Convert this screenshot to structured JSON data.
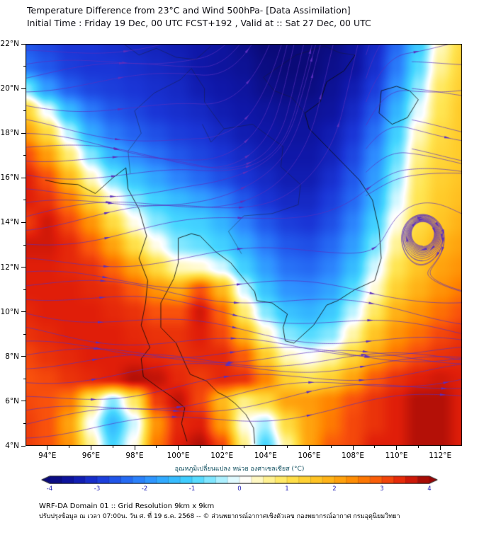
{
  "header": {
    "title_line1": "Temperature Difference from 23°C and Wind 500hPa- [Data Assimilation]",
    "title_line2": "Initial Time : Friday 19 Dec, 00 UTC FCST+192 , Valid at ::  Sat 27 Dec, 00 UTC"
  },
  "footer": {
    "line1": "WRF-DA Domain 01 :: Grid Resolution 9km x 9km",
    "line2": "ปรับปรุงข้อมูล ณ เวลา 07:00น. วัน ศ. ที่ 19 ธ.ค. 2568 -- © ส่วนพยากรณ์อากาศเชิงตัวเลข กองพยากรณ์อากาศ กรมอุตุนิยมวิทยา"
  },
  "chart_data": {
    "type": "heatmap",
    "title": "Temperature Difference from 23°C and Wind 500hPa- [Data Assimilation]",
    "lon_range": [
      93,
      113
    ],
    "lat_range": [
      4,
      22
    ],
    "x_ticks": [
      {
        "value": 94,
        "label": "94°E"
      },
      {
        "value": 96,
        "label": "96°E"
      },
      {
        "value": 98,
        "label": "98°E"
      },
      {
        "value": 100,
        "label": "100°E"
      },
      {
        "value": 102,
        "label": "102°E"
      },
      {
        "value": 104,
        "label": "104°E"
      },
      {
        "value": 106,
        "label": "106°E"
      },
      {
        "value": 108,
        "label": "108°E"
      },
      {
        "value": 110,
        "label": "110°E"
      },
      {
        "value": 112,
        "label": "112°E"
      }
    ],
    "y_ticks": [
      {
        "value": 22,
        "label": "22°N"
      },
      {
        "value": 20,
        "label": "20°N"
      },
      {
        "value": 18,
        "label": "18°N"
      },
      {
        "value": 16,
        "label": "16°N"
      },
      {
        "value": 14,
        "label": "14°N"
      },
      {
        "value": 12,
        "label": "12°N"
      },
      {
        "value": 10,
        "label": "10°N"
      },
      {
        "value": 8,
        "label": "8°N"
      },
      {
        "value": 6,
        "label": "6°N"
      },
      {
        "value": 4,
        "label": "4°N"
      }
    ],
    "grid": {
      "units": "°C",
      "lon_start": 93,
      "lon_step": 1,
      "lat_start": 22,
      "lat_step": -1,
      "values": [
        [
          -2.6,
          -2.8,
          -3.0,
          -3.0,
          -3.1,
          -3.2,
          -3.3,
          -3.4,
          -3.5,
          -3.6,
          -3.8,
          -4.0,
          -4.0,
          -4.0,
          -3.9,
          -3.6,
          -3.2,
          -2.4,
          -1.2,
          0.4,
          1.2
        ],
        [
          -2.3,
          -2.6,
          -2.9,
          -3.0,
          -3.0,
          -3.1,
          -3.2,
          -3.3,
          -3.5,
          -3.6,
          -3.7,
          -3.9,
          -4.0,
          -4.0,
          -3.8,
          -3.6,
          -3.1,
          -2.2,
          -0.9,
          0.6,
          1.3
        ],
        [
          -0.6,
          -1.8,
          -2.5,
          -2.8,
          -2.9,
          -3.0,
          -3.1,
          -3.2,
          -3.4,
          -3.5,
          -3.6,
          -3.8,
          -3.9,
          -3.9,
          -3.7,
          -3.4,
          -2.9,
          -1.9,
          -0.5,
          0.9,
          1.4
        ],
        [
          1.4,
          0.0,
          -1.4,
          -2.2,
          -2.6,
          -2.8,
          -3.0,
          -3.1,
          -3.2,
          -3.4,
          -3.5,
          -3.6,
          -3.7,
          -3.7,
          -3.6,
          -3.2,
          -2.6,
          -1.5,
          -0.1,
          1.0,
          1.5
        ],
        [
          2.2,
          1.2,
          -0.3,
          -1.6,
          -2.2,
          -2.5,
          -2.7,
          -2.9,
          -3.0,
          -3.2,
          -3.4,
          -3.5,
          -3.6,
          -3.6,
          -3.4,
          -3.0,
          -2.3,
          -1.1,
          0.4,
          1.2,
          1.5
        ],
        [
          3.1,
          2.2,
          0.8,
          -0.6,
          -1.5,
          -2.0,
          -2.3,
          -2.6,
          -2.8,
          -3.0,
          -3.2,
          -3.4,
          -3.5,
          -3.5,
          -3.3,
          -2.8,
          -2.0,
          -0.8,
          0.7,
          1.3,
          1.5
        ],
        [
          3.5,
          3.0,
          1.8,
          0.4,
          -0.7,
          -1.3,
          -1.7,
          -2.1,
          -2.4,
          -2.7,
          -3.0,
          -3.2,
          -3.4,
          -3.4,
          -3.1,
          -2.6,
          -1.8,
          -0.5,
          0.9,
          1.4,
          1.6
        ],
        [
          3.5,
          3.3,
          2.6,
          1.4,
          0.3,
          -0.6,
          -1.1,
          -1.4,
          -1.7,
          -2.1,
          -2.6,
          -3.0,
          -3.2,
          -3.2,
          -2.9,
          -2.4,
          -1.5,
          -0.2,
          1.0,
          1.5,
          1.7
        ],
        [
          3.2,
          3.6,
          3.1,
          2.3,
          1.2,
          0.2,
          -0.6,
          -1.0,
          -1.1,
          -1.5,
          -2.1,
          -2.6,
          -2.9,
          -3.0,
          -2.7,
          -2.1,
          -1.1,
          0.2,
          1.2,
          1.6,
          1.9
        ],
        [
          3.6,
          3.6,
          3.4,
          2.9,
          2.1,
          1.1,
          0.2,
          -0.6,
          -0.8,
          -1.1,
          -1.6,
          -2.2,
          -2.6,
          -2.7,
          -2.4,
          -1.8,
          -0.7,
          0.6,
          1.4,
          1.9,
          2.1
        ],
        [
          3.5,
          3.5,
          3.4,
          3.3,
          2.8,
          2.1,
          1.2,
          0.4,
          0.3,
          -0.2,
          -1.1,
          -1.8,
          -2.3,
          -2.4,
          -2.1,
          -1.4,
          -0.2,
          1.0,
          1.6,
          2.1,
          2.3
        ],
        [
          3.5,
          3.5,
          3.5,
          3.4,
          3.3,
          2.9,
          2.3,
          2.0,
          3.0,
          1.8,
          -0.2,
          -1.3,
          -1.9,
          -2.0,
          -1.7,
          -0.9,
          0.3,
          1.4,
          1.9,
          2.3,
          2.6
        ],
        [
          3.4,
          3.5,
          3.5,
          3.5,
          3.4,
          3.3,
          3.0,
          3.0,
          3.6,
          2.8,
          0.8,
          -0.6,
          -1.3,
          -1.5,
          -1.2,
          -0.3,
          0.9,
          1.9,
          2.3,
          2.7,
          3.0
        ],
        [
          3.3,
          3.4,
          3.5,
          3.5,
          3.5,
          3.4,
          3.3,
          3.3,
          3.5,
          3.1,
          1.9,
          0.4,
          -0.6,
          -0.9,
          -0.6,
          0.5,
          1.6,
          2.3,
          2.7,
          3.1,
          3.3
        ],
        [
          3.1,
          3.3,
          3.4,
          3.5,
          3.5,
          3.5,
          3.4,
          3.3,
          3.4,
          3.4,
          2.9,
          1.5,
          0.4,
          0.1,
          0.5,
          1.3,
          2.1,
          2.7,
          3.1,
          3.3,
          3.4
        ],
        [
          3.0,
          3.1,
          3.3,
          3.4,
          3.5,
          3.8,
          3.7,
          3.4,
          3.2,
          3.4,
          3.3,
          2.5,
          1.4,
          1.0,
          1.4,
          2.1,
          2.9,
          3.3,
          3.5,
          3.6,
          3.5
        ],
        [
          3.1,
          3.0,
          2.6,
          0.9,
          -0.6,
          0.9,
          3.2,
          3.7,
          3.1,
          1.8,
          0.7,
          1.2,
          2.1,
          2.2,
          2.5,
          3.0,
          3.3,
          3.5,
          3.8,
          3.8,
          3.5
        ],
        [
          3.2,
          3.0,
          2.1,
          0.1,
          -1.4,
          -0.2,
          2.3,
          3.4,
          3.5,
          2.2,
          0.2,
          -0.4,
          1.2,
          2.1,
          2.6,
          3.1,
          3.3,
          3.5,
          3.8,
          3.8,
          3.5
        ],
        [
          3.2,
          3.0,
          2.3,
          0.6,
          -1.0,
          0.2,
          2.6,
          3.5,
          3.8,
          3.1,
          0.7,
          -1.0,
          0.6,
          2.1,
          2.9,
          3.1,
          3.5,
          3.5,
          3.8,
          3.8,
          3.5
        ]
      ]
    },
    "colorbar": {
      "label": "อุณหภูมิเปลี่ยนแปลง หน่วย องศาเซลเซียส (°C)",
      "unit": "°C",
      "range": [
        -4,
        4
      ],
      "ticks": [
        -4,
        -3,
        -2,
        -1,
        0,
        1,
        2,
        3,
        4
      ],
      "stops": [
        {
          "v": -4.0,
          "c": "#0a0a78"
        },
        {
          "v": -3.5,
          "c": "#0f17a8"
        },
        {
          "v": -3.0,
          "c": "#1a35d6"
        },
        {
          "v": -2.5,
          "c": "#2360f0"
        },
        {
          "v": -2.0,
          "c": "#2e8cff"
        },
        {
          "v": -1.5,
          "c": "#33b4ff"
        },
        {
          "v": -1.0,
          "c": "#45d6ff"
        },
        {
          "v": -0.5,
          "c": "#93ecff"
        },
        {
          "v": -0.1,
          "c": "#e6fbff"
        },
        {
          "v": 0.1,
          "c": "#ffffff"
        },
        {
          "v": 0.5,
          "c": "#fff6a8"
        },
        {
          "v": 1.0,
          "c": "#ffe552"
        },
        {
          "v": 1.5,
          "c": "#ffcb2a"
        },
        {
          "v": 2.0,
          "c": "#ffab12"
        },
        {
          "v": 2.5,
          "c": "#ff8400"
        },
        {
          "v": 3.0,
          "c": "#f9520c"
        },
        {
          "v": 3.5,
          "c": "#e01e09"
        },
        {
          "v": 4.0,
          "c": "#960606"
        }
      ]
    },
    "wind": {
      "level": "500hPa",
      "style": "streamlines",
      "color": "#5b2fbe",
      "description": "500 hPa wind streamlines with arrowheads: broad west-to-east flow, turning northward over the northeast of the domain, anticyclonic eddy near 111°E 13.5°N"
    },
    "overlays": [
      "coastlines",
      "country-borders"
    ]
  }
}
